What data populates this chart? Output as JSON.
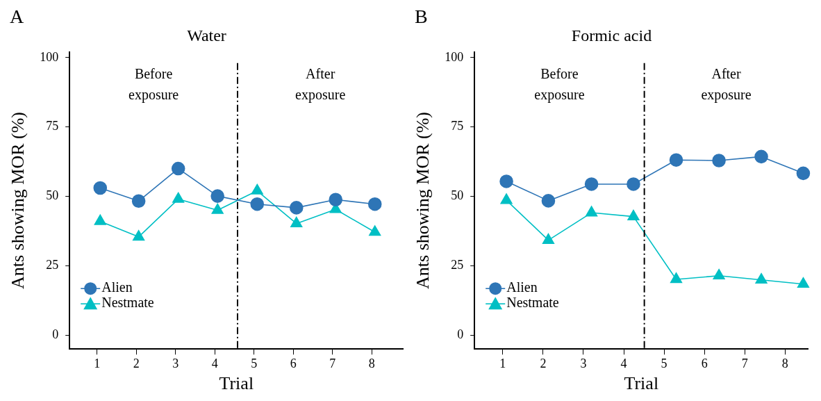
{
  "chart_data": [
    {
      "type": "line",
      "title": "Water",
      "xlabel": "Trial",
      "ylabel": "Ants showing MOR (%)",
      "xlim": [
        0.3,
        8.8
      ],
      "xticks": [
        1,
        2,
        3,
        4,
        5,
        6,
        7,
        8
      ],
      "ylim": [
        -5,
        102
      ],
      "yticks": [
        0,
        25,
        50,
        75,
        100
      ],
      "grid": false,
      "legend": "bottom left",
      "series": [
        {
          "name": "Alien",
          "color": "#2e75b6",
          "marker": "circle",
          "x": [
            1.08,
            2.06,
            3.07,
            4.07,
            5.08,
            6.08,
            7.08,
            8.08
          ],
          "values": [
            53,
            48.3,
            60,
            50.1,
            47.2,
            45.9,
            48.8,
            47.2
          ]
        },
        {
          "name": "Nestmate",
          "color": "#00bfc4",
          "marker": "triangle",
          "x": [
            1.08,
            2.06,
            3.07,
            4.07,
            5.08,
            6.08,
            7.08,
            8.08
          ],
          "values": [
            41,
            35.4,
            49,
            45,
            52,
            40.2,
            45.3,
            37.1
          ]
        }
      ],
      "ref_lines": [
        {
          "axis": "x",
          "value": 4.58,
          "color": "#000000",
          "line_style": "dashdot"
        }
      ],
      "annotations": [
        "A",
        "Before exposure",
        "After exposure"
      ]
    },
    {
      "type": "line",
      "title": "Formic acid",
      "xlabel": "Trial",
      "ylabel": "Ants showing MOR (%)",
      "xlim": [
        0.3,
        8.57
      ],
      "xticks": [
        1,
        2,
        3,
        4,
        5,
        6,
        7,
        8
      ],
      "ylim": [
        -5,
        102
      ],
      "yticks": [
        0,
        25,
        50,
        75,
        100
      ],
      "grid": false,
      "legend": "bottom left",
      "series": [
        {
          "name": "Alien",
          "color": "#2e75b6",
          "marker": "circle",
          "x": [
            1.09,
            2.13,
            3.2,
            4.24,
            5.3,
            6.36,
            7.41,
            8.45
          ],
          "values": [
            55.4,
            48.4,
            54.4,
            54.4,
            63.1,
            62.9,
            64.3,
            58.3
          ]
        },
        {
          "name": "Nestmate",
          "color": "#00bfc4",
          "marker": "triangle",
          "x": [
            1.09,
            2.13,
            3.2,
            4.24,
            5.3,
            6.36,
            7.41,
            8.45
          ],
          "values": [
            48.6,
            34.2,
            44.1,
            42.7,
            20.1,
            21.4,
            19.9,
            18.4
          ]
        }
      ],
      "ref_lines": [
        {
          "axis": "x",
          "value": 4.51,
          "color": "#000000",
          "line_style": "dashdot"
        }
      ],
      "annotations": [
        "B",
        "Before exposure",
        "After exposure"
      ]
    }
  ]
}
